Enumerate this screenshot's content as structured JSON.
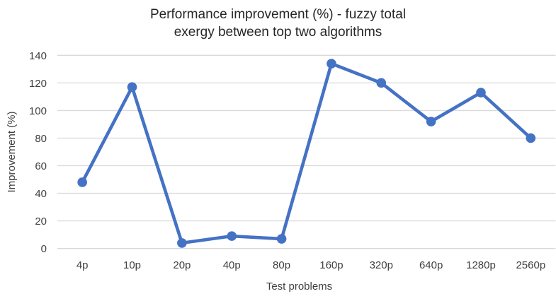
{
  "chart_data": {
    "type": "line",
    "title": "Performance improvement (%) - fuzzy total exergy between top two algorithms",
    "title_lines": [
      "Performance improvement (%) - fuzzy total",
      "exergy between top two algorithms"
    ],
    "xlabel": "Test problems",
    "ylabel": "Improvement (%)",
    "categories": [
      "4p",
      "10p",
      "20p",
      "40p",
      "80p",
      "160p",
      "320p",
      "640p",
      "1280p",
      "2560p"
    ],
    "values": [
      48,
      117,
      4,
      9,
      7,
      134,
      120,
      92,
      113,
      80
    ],
    "ylim": [
      0,
      140
    ],
    "yticks": [
      0,
      20,
      40,
      60,
      80,
      100,
      120,
      140
    ],
    "grid": true,
    "legend": "none",
    "marker": "circle",
    "line_color": "#4472C4",
    "grid_color": "#D9D9D9",
    "text_color": "#404040"
  }
}
